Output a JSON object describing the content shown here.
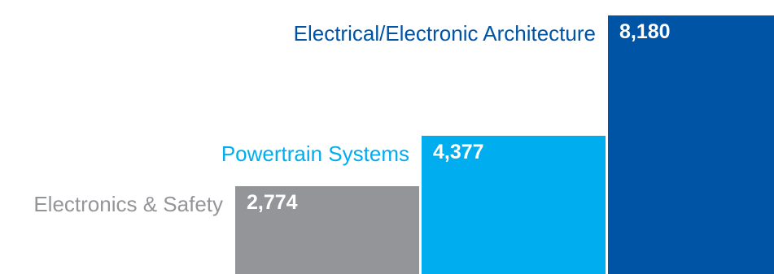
{
  "chart_data": {
    "type": "bar",
    "title": "",
    "xlabel": "",
    "ylabel": "",
    "categories": [
      "Electronics & Safety",
      "Powertrain Systems",
      "Electrical/Electronic Architecture"
    ],
    "values": [
      2774,
      4377,
      8180
    ],
    "value_labels": [
      "2,774",
      "4,377",
      "8,180"
    ],
    "colors": [
      "#939598",
      "#00aeef",
      "#0054a6"
    ],
    "label_colors": [
      "#939598",
      "#00aeef",
      "#0054a6"
    ],
    "ylim": [
      0,
      8180
    ],
    "grid": false,
    "legend": "none"
  }
}
